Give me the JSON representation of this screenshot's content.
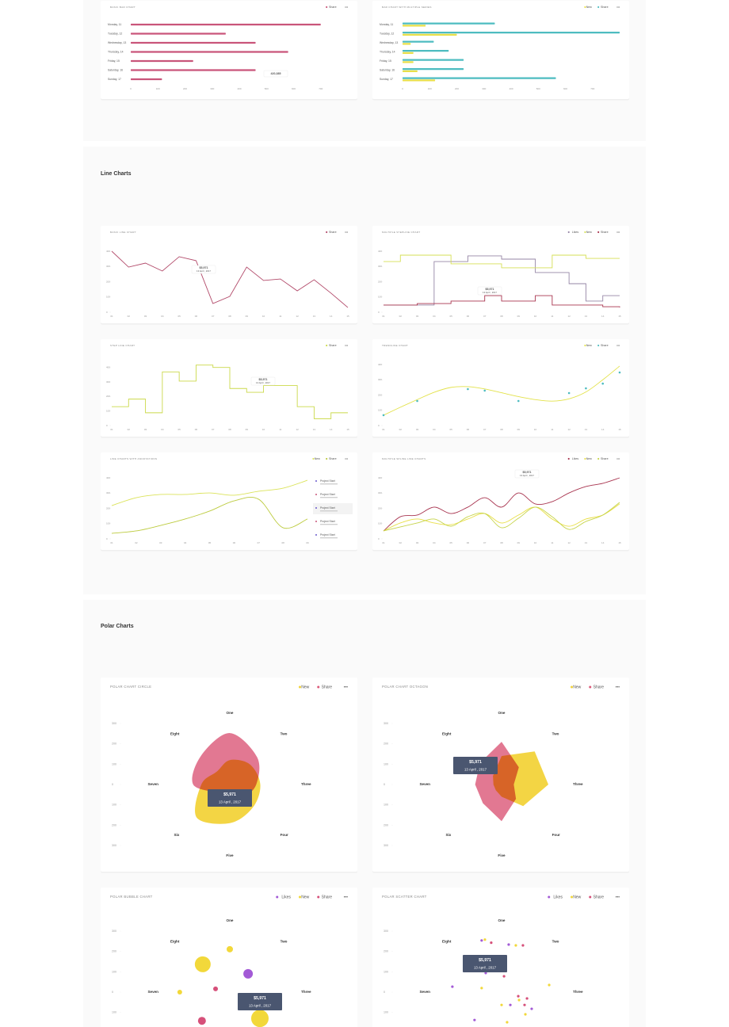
{
  "sections": [
    {
      "title": "Line Charts"
    },
    {
      "title": "Polar Charts"
    }
  ],
  "menu_label": "•••",
  "chart_data": [
    {
      "type": "bar",
      "orientation": "horizontal",
      "title": "BASIC BAR CHART",
      "categories": [
        "Monday, 11",
        "Tuesday, 12",
        "Wednesday, 13",
        "Thursday, 14",
        "Friday, 15",
        "Saturday, 16",
        "Sunday, 17"
      ],
      "series": [
        {
          "name": "Share",
          "color": "#c9557a",
          "values": [
            700,
            350,
            460,
            580,
            230,
            460,
            115
          ]
        }
      ],
      "xlim": [
        0,
        800
      ],
      "xticks": [
        0,
        100,
        200,
        300,
        400,
        500,
        600,
        700
      ],
      "tooltip": {
        "value": "420,385"
      }
    },
    {
      "type": "bar",
      "orientation": "horizontal",
      "title": "BAR CHART WITH MULTIPLE SERIES",
      "categories": [
        "Monday, 11",
        "Tuesday, 12",
        "Wednesday, 13",
        "Thursday, 14",
        "Friday, 15",
        "Saturday, 16",
        "Sunday, 17"
      ],
      "series": [
        {
          "name": "New",
          "color": "#e9df48",
          "values": [
            85,
            200,
            30,
            40,
            40,
            55,
            120
          ]
        },
        {
          "name": "Share",
          "color": "#4dbcc0",
          "values": [
            340,
            800,
            115,
            170,
            225,
            225,
            565
          ]
        }
      ],
      "xlim": [
        0,
        800
      ],
      "xticks": [
        0,
        100,
        200,
        300,
        400,
        500,
        600,
        700
      ]
    },
    {
      "type": "line",
      "title": "BASIC LINE CHART",
      "categories": [
        "01",
        "02",
        "03",
        "04",
        "05",
        "06",
        "07",
        "08",
        "09",
        "10",
        "11",
        "12",
        "13",
        "14",
        "15"
      ],
      "series": [
        {
          "name": "Share",
          "color": "#b24a6a",
          "values": [
            400,
            296,
            322,
            270,
            364,
            338,
            57,
            104,
            296,
            208,
            218,
            140,
            213,
            125,
            31
          ]
        }
      ],
      "ylim": [
        0,
        400
      ],
      "yticks": [
        0,
        100,
        200,
        300,
        400
      ],
      "tooltip": {
        "value": "$5,971",
        "date": "13 April , 2017"
      }
    },
    {
      "type": "line",
      "step": true,
      "title": "MULTIPLE STEPLINE CHART",
      "categories": [
        "01",
        "02",
        "03",
        "04",
        "05",
        "06",
        "07",
        "08",
        "09",
        "10",
        "11",
        "12",
        "13",
        "14",
        "15"
      ],
      "series": [
        {
          "name": "Likes",
          "color": "#9686a6",
          "values": [
            47,
            47,
            47,
            332,
            332,
            369,
            369,
            348,
            348,
            260,
            260,
            187,
            73,
            109,
            109
          ]
        },
        {
          "name": "New",
          "color": "#d6df55",
          "values": [
            332,
            374,
            374,
            374,
            317,
            317,
            317,
            291,
            291,
            291,
            374,
            374,
            353,
            353,
            353
          ]
        },
        {
          "name": "Share",
          "color": "#a8344f",
          "values": [
            47,
            47,
            57,
            57,
            73,
            73,
            109,
            73,
            73,
            109,
            47,
            47,
            47,
            36,
            31
          ]
        }
      ],
      "ylim": [
        0,
        400
      ],
      "yticks": [
        0,
        100,
        200,
        300,
        400
      ],
      "tooltip": {
        "value": "$5,971",
        "date": "13 April , 2017"
      }
    },
    {
      "type": "line",
      "step": true,
      "title": "STEP LINE CHART",
      "categories": [
        "01",
        "02",
        "03",
        "04",
        "05",
        "06",
        "07",
        "08",
        "09",
        "10",
        "11",
        "12",
        "13",
        "14",
        "15"
      ],
      "series": [
        {
          "name": "Share",
          "color": "#cbd94a",
          "values": [
            130,
            182,
            88,
            369,
            306,
            416,
            400,
            255,
            229,
            275,
            275,
            130,
            47,
            88,
            88
          ]
        }
      ],
      "ylim": [
        0,
        420
      ],
      "yticks": [
        0,
        100,
        200,
        300,
        400
      ],
      "tooltip": {
        "value": "$5,971",
        "date": "13 April , 2017"
      }
    },
    {
      "type": "line",
      "smooth": true,
      "title": "TRENDLINE CHART",
      "categories": [
        "01",
        "02",
        "03",
        "04",
        "05",
        "06",
        "07",
        "08",
        "09",
        "10",
        "11",
        "12",
        "13",
        "14",
        "15"
      ],
      "series": [
        {
          "name": "New",
          "color": "#e3e24a",
          "values": [
            68,
            120,
            170,
            218,
            250,
            255,
            240,
            215,
            190,
            170,
            160,
            175,
            220,
            300,
            390
          ]
        },
        {
          "name": "Share",
          "color": "#4dbcc0",
          "mark": "dots",
          "values": [
            68,
            null,
            161,
            null,
            null,
            239,
            229,
            null,
            161,
            null,
            null,
            213,
            244,
            275,
            348
          ]
        }
      ],
      "ylim": [
        0,
        400
      ],
      "yticks": [
        0,
        100,
        200,
        300,
        400
      ]
    },
    {
      "type": "line",
      "smooth": true,
      "title": "LINE CHARTS WITH ANNOTATIONS",
      "categories": [
        "01",
        "02",
        "03",
        "04",
        "05",
        "06",
        "07",
        "08",
        "09"
      ],
      "series": [
        {
          "name": "New",
          "color": "#dbe35a",
          "values": [
            218,
            270,
            291,
            291,
            301,
            286,
            312,
            332,
            384
          ]
        },
        {
          "name": "Share",
          "color": "#bccb3e",
          "values": [
            36,
            52,
            88,
            130,
            182,
            249,
            260,
            73,
            130
          ]
        }
      ],
      "ylim": [
        0,
        400
      ],
      "yticks": [
        0,
        100,
        200,
        300,
        400
      ],
      "annotations": [
        {
          "label": "Project Start"
        },
        {
          "label": "Project Start"
        },
        {
          "label": "Project Start"
        },
        {
          "label": "Project Start"
        },
        {
          "label": "Project Start"
        }
      ]
    },
    {
      "type": "line",
      "smooth": true,
      "title": "MULTIPLE SPLINE LINE CHARTS",
      "categories": [
        "01",
        "02",
        "03",
        "04",
        "05",
        "06",
        "07",
        "08",
        "09",
        "10",
        "11",
        "12",
        "13",
        "14",
        "15"
      ],
      "series": [
        {
          "name": "Likes",
          "color": "#a8344f",
          "values": [
            52,
            145,
            156,
            208,
            166,
            208,
            270,
            208,
            301,
            229,
            244,
            301,
            343,
            364,
            400
          ]
        },
        {
          "name": "New",
          "color": "#e9df48",
          "values": [
            52,
            104,
            130,
            104,
            93,
            130,
            166,
            104,
            156,
            208,
            130,
            83,
            130,
            156,
            229
          ]
        },
        {
          "name": "Share",
          "color": "#c6d44a",
          "values": [
            52,
            78,
            104,
            130,
            83,
            145,
            166,
            73,
            135,
            208,
            145,
            62,
            114,
            156,
            239
          ]
        }
      ],
      "ylim": [
        0,
        400
      ],
      "yticks": [
        0,
        100,
        200,
        300,
        400
      ],
      "tooltip": {
        "value": "$5,971",
        "date": "13 April , 2017"
      }
    },
    {
      "type": "polar",
      "shape": "circle",
      "title": "POLAR CHART CIRCLE",
      "categories": [
        "One",
        "Two",
        "Three",
        "Four",
        "Five",
        "Six",
        "Seven",
        "Eight"
      ],
      "series": [
        {
          "name": "New",
          "color": "#f2d33a",
          "values": [
            120,
            140,
            150,
            160,
            190,
            230,
            140,
            90
          ]
        },
        {
          "name": "Share",
          "color": "#dc5a7a",
          "values": [
            253,
            190,
            130,
            90,
            60,
            60,
            180,
            200
          ]
        }
      ],
      "ylim": [
        -300,
        300
      ],
      "yticks": [
        300,
        200,
        100,
        0,
        {
          "value": -100,
          "label": "100"
        },
        {
          "value": -200,
          "label": "200"
        },
        {
          "value": -300,
          "label": "300"
        }
      ],
      "tooltip": {
        "value": "$5,971",
        "date": "13 April , 2017"
      }
    },
    {
      "type": "polar",
      "shape": "octagon",
      "title": "POLAR CHART OCTAGON",
      "categories": [
        "One",
        "Two",
        "Three",
        "Four",
        "Five",
        "Six",
        "Seven",
        "Eight"
      ],
      "series": [
        {
          "name": "New",
          "color": "#f2d33a",
          "values": [
            140,
            230,
            230,
            150,
            60,
            40,
            40,
            60
          ]
        },
        {
          "name": "Share",
          "color": "#dc5a7a",
          "values": [
            210,
            120,
            60,
            100,
            180,
            130,
            130,
            150
          ]
        }
      ],
      "ylim": [
        -300,
        300
      ],
      "yticks": [
        300,
        200,
        100,
        0,
        {
          "value": -100,
          "label": "100"
        },
        {
          "value": -200,
          "label": "200"
        },
        {
          "value": -300,
          "label": "300"
        }
      ],
      "tooltip": {
        "value": "$5,971",
        "date": "13 April , 2017"
      }
    },
    {
      "type": "bubble",
      "title": "POLAR BUBBLE CHART",
      "categories": [
        "One",
        "Two",
        "Three",
        "Four",
        "Five",
        "Six",
        "Seven",
        "Eight"
      ],
      "series": [
        {
          "name": "Likes",
          "color": "#a35ad6",
          "x": [
            90
          ],
          "y": [
            90
          ],
          "sizes": [
            6
          ]
        },
        {
          "name": "New",
          "color": "#f2d83a",
          "x": [
            -133,
            0,
            -246,
            148
          ],
          "y": [
            137,
            211,
            0,
            -129
          ],
          "sizes": [
            10,
            4,
            3,
            11
          ]
        },
        {
          "name": "Share",
          "color": "#d6507a",
          "x": [
            -70,
            -137
          ],
          "y": [
            16,
            -141
          ],
          "sizes": [
            3,
            5
          ]
        }
      ],
      "ylim": [
        -300,
        300
      ],
      "yticks": [
        300,
        200,
        100,
        0,
        {
          "value": -100,
          "label": "100"
        },
        {
          "value": -200,
          "label": "200"
        },
        {
          "value": -300,
          "label": "300"
        }
      ],
      "tooltip": {
        "value": "$5,971",
        "date": "13 April , 2017"
      }
    },
    {
      "type": "scatter",
      "title": "POLAR SCATTER CHART",
      "categories": [
        "One",
        "Two",
        "Three",
        "Four",
        "Five",
        "Six",
        "Seven",
        "Eight"
      ],
      "series": [
        {
          "name": "Likes",
          "color": "#a35ad6",
          "x": [
            -98,
            35,
            -78,
            -242,
            43,
            148,
            -133
          ],
          "y": [
            254,
            234,
            94,
            27,
            -63,
            -82,
            -137
          ]
        },
        {
          "name": "New",
          "color": "#f2d83a",
          "x": [
            -82,
            70,
            -98,
            0,
            86,
            234,
            117,
            27
          ],
          "y": [
            258,
            230,
            20,
            -63,
            -39,
            35,
            -109,
            -148
          ]
        },
        {
          "name": "Share",
          "color": "#d6507a",
          "x": [
            -51,
            105,
            12,
            82,
            125,
            113
          ],
          "y": [
            243,
            230,
            78,
            -20,
            -31,
            -63
          ]
        }
      ],
      "ylim": [
        -300,
        300
      ],
      "yticks": [
        300,
        200,
        100,
        0,
        {
          "value": -100,
          "label": "100"
        },
        {
          "value": -200,
          "label": "200"
        },
        {
          "value": -300,
          "label": "300"
        }
      ],
      "tooltip": {
        "value": "$5,971",
        "date": "13 April , 2017"
      }
    }
  ]
}
